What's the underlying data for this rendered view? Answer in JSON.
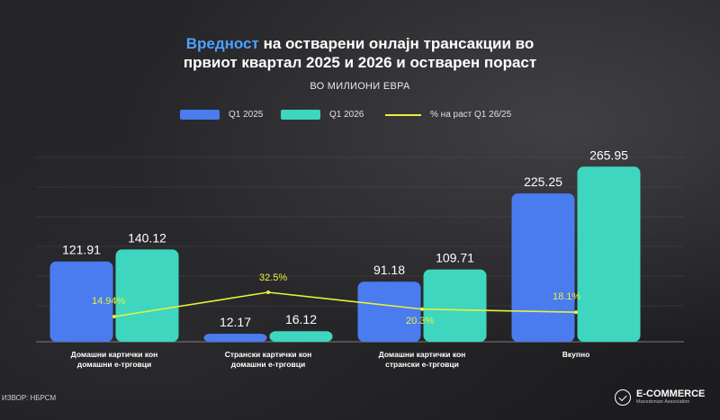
{
  "title": {
    "highlight": "Вредност",
    "line1_rest": " на остварени онлајн трансакции во",
    "line2": "првиот квартал 2025 и 2026 и остварен пораст"
  },
  "subtitle": "ВО МИЛИОНИ ЕВРА",
  "source": "ИЗВОР: НБРСМ",
  "logo": {
    "name": "E-COMMERCE",
    "tagline": "Macedonian Association",
    "icon": "cart-icon"
  },
  "colors": {
    "q1_2025": "#4a7cf0",
    "q1_2026": "#3ed6bf",
    "growth": "#e9f23a",
    "highlight": "#4aa3ff"
  },
  "chart_data": {
    "type": "bar",
    "categories": [
      [
        "Домашни картички кон",
        "домашни е-трговци"
      ],
      [
        "Странски картички кон",
        "домашни е-трговци"
      ],
      [
        "Домашни картички кон",
        "странски е-трговци"
      ],
      [
        "Вкупно"
      ]
    ],
    "series": [
      {
        "name": "Q1 2025",
        "values": [
          121.91,
          12.17,
          91.18,
          225.25
        ],
        "labels": [
          "121.91",
          "12.17",
          "91.18",
          "225.25"
        ]
      },
      {
        "name": "Q1 2026",
        "values": [
          140.12,
          16.12,
          109.71,
          265.95
        ],
        "labels": [
          "140.12",
          "16.12",
          "109.71",
          "265.95"
        ]
      }
    ],
    "line_series": {
      "name": "% на раст Q1 26/25",
      "values": [
        14.94,
        32.5,
        20.3,
        18.1
      ],
      "labels": [
        "14.94%",
        "32.5%",
        "20.3%",
        "18.1%"
      ]
    },
    "ylim": [
      0,
      280
    ],
    "grid": true,
    "legend": "top-center"
  }
}
